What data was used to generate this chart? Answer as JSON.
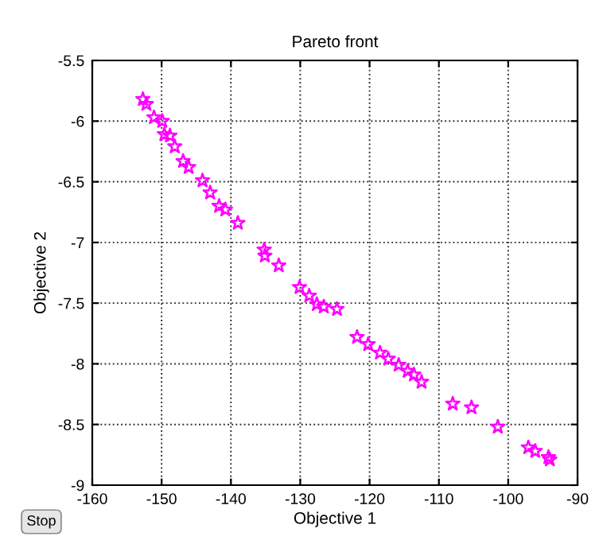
{
  "chart_data": {
    "type": "scatter",
    "title": "Pareto front",
    "xlabel": "Objective 1",
    "ylabel": "Objective 2",
    "x": [
      -152.7,
      -152.2,
      -151.1,
      -149.9,
      -149.6,
      -148.8,
      -148.1,
      -146.9,
      -146.1,
      -144.1,
      -143.0,
      -141.7,
      -140.8,
      -139.0,
      -135.2,
      -135.1,
      -133.1,
      -130.1,
      -128.7,
      -127.6,
      -126.6,
      -124.7,
      -121.8,
      -120.2,
      -118.5,
      -117.3,
      -115.8,
      -114.5,
      -113.6,
      -112.5,
      -108.0,
      -105.3,
      -101.5,
      -97.1,
      -96.1,
      -94.2,
      -94.0
    ],
    "values": [
      -5.82,
      -5.86,
      -5.97,
      -6.0,
      -6.11,
      -6.12,
      -6.21,
      -6.33,
      -6.38,
      -6.49,
      -6.59,
      -6.7,
      -6.73,
      -6.84,
      -7.06,
      -7.11,
      -7.19,
      -7.37,
      -7.44,
      -7.51,
      -7.53,
      -7.55,
      -7.78,
      -7.84,
      -7.91,
      -7.96,
      -8.01,
      -8.06,
      -8.09,
      -8.15,
      -8.33,
      -8.36,
      -8.52,
      -8.69,
      -8.72,
      -8.77,
      -8.79
    ],
    "color": "#ff00ff",
    "marker": "star",
    "grid": true,
    "line_style": "dotted",
    "xlim": [
      -160,
      -90
    ],
    "xticks": [
      -160,
      -150,
      -140,
      -130,
      -120,
      -110,
      -100,
      -90
    ],
    "ylim": [
      -9,
      -5.5
    ],
    "yticks": [
      -9,
      -8.5,
      -8,
      -7.5,
      -7,
      -6.5,
      -6,
      -5.5
    ],
    "annotations": [
      "Stop"
    ]
  }
}
